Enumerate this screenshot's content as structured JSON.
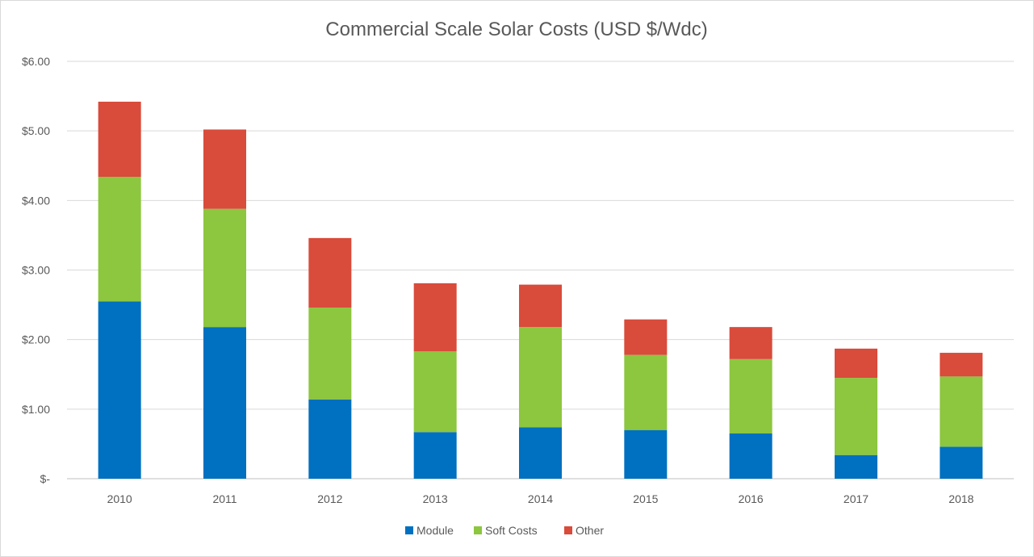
{
  "chart_data": {
    "type": "bar",
    "stacked": true,
    "title": "Commercial Scale Solar Costs (USD $/Wdc)",
    "xlabel": "",
    "ylabel": "",
    "categories": [
      "2010",
      "2011",
      "2012",
      "2013",
      "2014",
      "2015",
      "2016",
      "2017",
      "2018"
    ],
    "series": [
      {
        "name": "Module",
        "color": "#0070C0",
        "values": [
          2.55,
          2.18,
          1.14,
          0.67,
          0.74,
          0.7,
          0.65,
          0.34,
          0.46
        ]
      },
      {
        "name": "Soft Costs",
        "color": "#8DC63F",
        "values": [
          1.79,
          1.7,
          1.32,
          1.16,
          1.44,
          1.08,
          1.07,
          1.11,
          1.01
        ]
      },
      {
        "name": "Other",
        "color": "#D94B3B",
        "values": [
          1.08,
          1.14,
          1.0,
          0.98,
          0.61,
          0.51,
          0.46,
          0.42,
          0.34
        ]
      }
    ],
    "ylim": [
      0,
      6
    ],
    "yticks": [
      0,
      1,
      2,
      3,
      4,
      5,
      6
    ],
    "ytick_labels": [
      "$-",
      "$1.00",
      "$2.00",
      "$3.00",
      "$4.00",
      "$5.00",
      "$6.00"
    ],
    "grid": true,
    "legend": "bottom"
  }
}
